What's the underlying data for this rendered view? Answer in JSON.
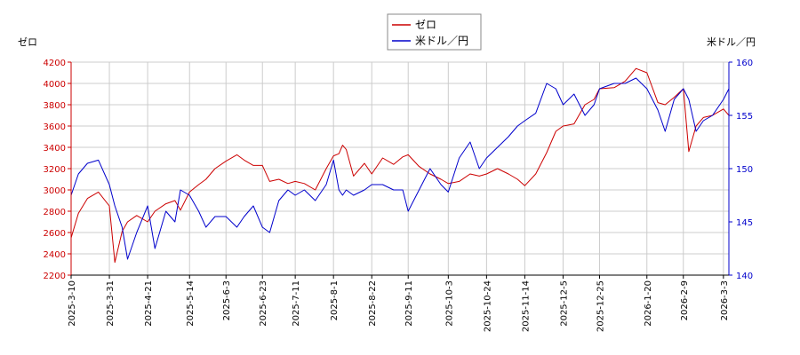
{
  "chart_data": {
    "type": "line",
    "legend_position": "top-center",
    "grid": true,
    "left_axis_title": "ゼロ",
    "right_axis_title": "米ドル／円",
    "left_ylim": [
      2200,
      4200
    ],
    "left_yticks": [
      2200,
      2400,
      2600,
      2800,
      3000,
      3200,
      3400,
      3600,
      3800,
      4000,
      4200
    ],
    "right_ylim": [
      140,
      160
    ],
    "right_yticks": [
      140,
      145,
      150,
      155,
      160
    ],
    "x_tick_labels": [
      "2025-3-10",
      "2025-3-31",
      "2025-4-21",
      "2025-5-14",
      "2025-6-3",
      "2025-6-23",
      "2025-7-11",
      "2025-8-1",
      "2025-8-22",
      "2025-9-11",
      "2025-10-3",
      "2025-10-24",
      "2025-11-14",
      "2025-12-5",
      "2025-12-25",
      "2026-1-20",
      "2026-2-9",
      "2026-3-3"
    ],
    "series": [
      {
        "name": "ゼロ",
        "axis": "left",
        "color": "#cc0000",
        "x": [
          "2025-3-10",
          "2025-3-14",
          "2025-3-19",
          "2025-3-25",
          "2025-3-31",
          "2025-4-3",
          "2025-4-7",
          "2025-4-10",
          "2025-4-15",
          "2025-4-21",
          "2025-4-25",
          "2025-5-1",
          "2025-5-6",
          "2025-5-9",
          "2025-5-14",
          "2025-5-19",
          "2025-5-23",
          "2025-5-28",
          "2025-6-3",
          "2025-6-9",
          "2025-6-13",
          "2025-6-18",
          "2025-6-23",
          "2025-6-27",
          "2025-7-2",
          "2025-7-7",
          "2025-7-11",
          "2025-7-16",
          "2025-7-22",
          "2025-7-28",
          "2025-8-1",
          "2025-8-4",
          "2025-8-6",
          "2025-8-8",
          "2025-8-12",
          "2025-8-18",
          "2025-8-22",
          "2025-8-28",
          "2025-9-3",
          "2025-9-8",
          "2025-9-11",
          "2025-9-17",
          "2025-9-23",
          "2025-9-29",
          "2025-10-3",
          "2025-10-9",
          "2025-10-15",
          "2025-10-20",
          "2025-10-24",
          "2025-10-30",
          "2025-11-5",
          "2025-11-10",
          "2025-11-14",
          "2025-11-20",
          "2025-11-26",
          "2025-12-1",
          "2025-12-5",
          "2025-12-11",
          "2025-12-17",
          "2025-12-22",
          "2025-12-25",
          "2026-1-2",
          "2026-1-8",
          "2026-1-14",
          "2026-1-20",
          "2026-1-26",
          "2026-1-30",
          "2026-2-4",
          "2026-2-9",
          "2026-2-12",
          "2026-2-16",
          "2026-2-20",
          "2026-2-25",
          "2026-3-3",
          "2026-3-6"
        ],
        "y": [
          2550,
          2780,
          2920,
          2980,
          2850,
          2320,
          2610,
          2700,
          2760,
          2700,
          2800,
          2870,
          2900,
          2810,
          2980,
          3050,
          3100,
          3200,
          3270,
          3330,
          3280,
          3230,
          3230,
          3080,
          3100,
          3060,
          3080,
          3060,
          3000,
          3200,
          3320,
          3340,
          3420,
          3380,
          3130,
          3250,
          3150,
          3300,
          3240,
          3310,
          3330,
          3220,
          3150,
          3100,
          3060,
          3080,
          3150,
          3130,
          3150,
          3200,
          3150,
          3100,
          3040,
          3150,
          3350,
          3550,
          3600,
          3620,
          3800,
          3850,
          3950,
          3960,
          4020,
          4140,
          4100,
          3820,
          3800,
          3870,
          3950,
          3360,
          3600,
          3680,
          3700,
          3760,
          3700
        ]
      },
      {
        "name": "米ドル／円",
        "axis": "right",
        "color": "#0000cc",
        "x": [
          "2025-3-10",
          "2025-3-14",
          "2025-3-19",
          "2025-3-25",
          "2025-3-31",
          "2025-4-3",
          "2025-4-7",
          "2025-4-10",
          "2025-4-15",
          "2025-4-21",
          "2025-4-25",
          "2025-5-1",
          "2025-5-6",
          "2025-5-9",
          "2025-5-14",
          "2025-5-19",
          "2025-5-23",
          "2025-5-28",
          "2025-6-3",
          "2025-6-9",
          "2025-6-13",
          "2025-6-18",
          "2025-6-23",
          "2025-6-27",
          "2025-7-2",
          "2025-7-7",
          "2025-7-11",
          "2025-7-16",
          "2025-7-22",
          "2025-7-28",
          "2025-8-1",
          "2025-8-4",
          "2025-8-6",
          "2025-8-8",
          "2025-8-12",
          "2025-8-18",
          "2025-8-22",
          "2025-8-28",
          "2025-9-3",
          "2025-9-8",
          "2025-9-11",
          "2025-9-17",
          "2025-9-23",
          "2025-9-29",
          "2025-10-3",
          "2025-10-9",
          "2025-10-15",
          "2025-10-20",
          "2025-10-24",
          "2025-10-30",
          "2025-11-5",
          "2025-11-10",
          "2025-11-14",
          "2025-11-20",
          "2025-11-26",
          "2025-12-1",
          "2025-12-5",
          "2025-12-11",
          "2025-12-17",
          "2025-12-22",
          "2025-12-25",
          "2026-1-2",
          "2026-1-8",
          "2026-1-14",
          "2026-1-20",
          "2026-1-26",
          "2026-1-30",
          "2026-2-4",
          "2026-2-9",
          "2026-2-12",
          "2026-2-16",
          "2026-2-20",
          "2026-2-25",
          "2026-3-3",
          "2026-3-6"
        ],
        "y": [
          147.5,
          149.5,
          150.5,
          150.8,
          148.5,
          146.5,
          144.5,
          141.5,
          144,
          146.5,
          142.5,
          146,
          145,
          148,
          147.5,
          146,
          144.5,
          145.5,
          145.5,
          144.5,
          145.5,
          146.5,
          144.5,
          144,
          147,
          148,
          147.5,
          148,
          147,
          148.5,
          150.8,
          148,
          147.5,
          148,
          147.5,
          148,
          148.5,
          148.5,
          148,
          148,
          146,
          148,
          150,
          148.5,
          147.8,
          151,
          152.5,
          150,
          151,
          152,
          153,
          154,
          154.5,
          155.2,
          158,
          157.5,
          156,
          157,
          155,
          156,
          157.5,
          158,
          158,
          158.5,
          157.5,
          155.5,
          153.5,
          156.5,
          157.5,
          156.5,
          153.5,
          154.5,
          155,
          156.5,
          157.5
        ]
      }
    ]
  }
}
